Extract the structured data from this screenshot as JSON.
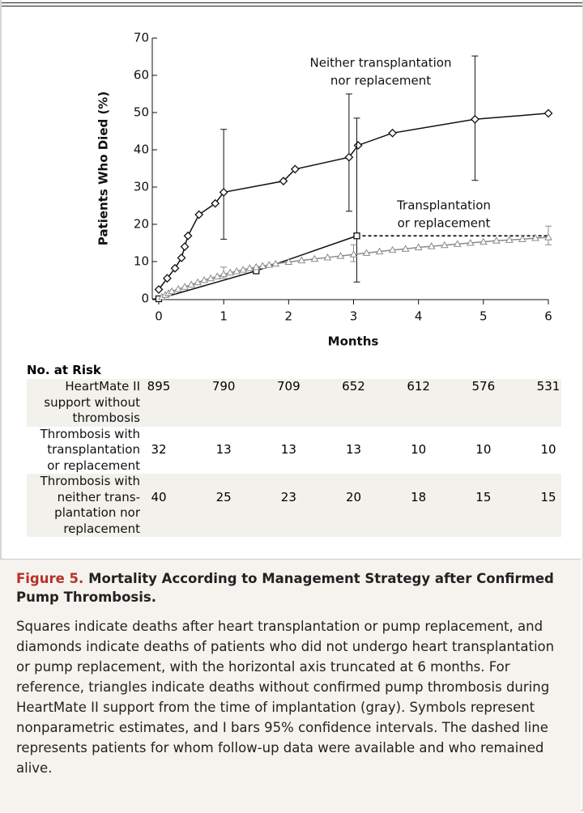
{
  "chart_data": {
    "type": "line",
    "y_label": "Patients Who Died (%)",
    "x_label": "Months",
    "xlim": [
      0,
      6
    ],
    "xticks": [
      0,
      1,
      2,
      3,
      4,
      5,
      6
    ],
    "ylim": [
      0,
      70
    ],
    "yticks": [
      0,
      10,
      20,
      30,
      40,
      50,
      60,
      70
    ],
    "grid": false,
    "series": [
      {
        "marker": "diamond",
        "color": "#111111",
        "x": [
          0,
          0.13,
          0.25,
          0.35,
          0.4,
          0.45,
          0.62,
          0.87,
          1,
          1.92,
          2.1,
          2.93,
          3.07,
          3.6,
          4.87,
          6
        ],
        "values": [
          2.5,
          5.5,
          8.2,
          11,
          14,
          16.9,
          22.6,
          25.6,
          28.6,
          31.6,
          34.8,
          38,
          41.2,
          44.5,
          48.2,
          49.8
        ],
        "ci_low": [
          null,
          null,
          null,
          null,
          null,
          null,
          null,
          null,
          16,
          null,
          null,
          23.5,
          null,
          null,
          31.8,
          null
        ],
        "ci_high": [
          null,
          null,
          null,
          null,
          null,
          null,
          null,
          null,
          45.5,
          null,
          null,
          55,
          null,
          null,
          65.2,
          null
        ]
      },
      {
        "marker": "square",
        "color": "#111111",
        "censored_dashed": true,
        "x": [
          0,
          1.5,
          3.05
        ],
        "values": [
          0,
          7.5,
          16.9
        ],
        "ci_low": [
          null,
          null,
          4.5
        ],
        "ci_high": [
          null,
          null,
          48.5
        ]
      },
      {
        "marker": "triangle",
        "color": "#8a8a8a",
        "x": [
          0.05,
          0.1,
          0.15,
          0.2,
          0.3,
          0.4,
          0.5,
          0.6,
          0.7,
          0.8,
          0.9,
          1.0,
          1.1,
          1.2,
          1.3,
          1.4,
          1.5,
          1.6,
          1.7,
          1.8,
          2.0,
          2.2,
          2.4,
          2.6,
          2.8,
          3.0,
          3.2,
          3.4,
          3.6,
          3.8,
          4.0,
          4.2,
          4.4,
          4.6,
          4.8,
          5.0,
          5.2,
          5.4,
          5.6,
          5.8,
          6.0
        ],
        "values": [
          0.5,
          1,
          1.5,
          2,
          2.6,
          3.2,
          3.8,
          4.4,
          5,
          5.5,
          6,
          6.6,
          7,
          7.4,
          7.8,
          8.2,
          8.5,
          8.8,
          9.1,
          9.4,
          9.9,
          10.3,
          10.7,
          11.1,
          11.5,
          11.9,
          12.3,
          12.7,
          13.1,
          13.4,
          13.8,
          14.1,
          14.4,
          14.7,
          15,
          15.3,
          15.6,
          15.8,
          16,
          16.3,
          16.5
        ],
        "ci_low": [
          null,
          null,
          null,
          null,
          null,
          null,
          null,
          null,
          null,
          null,
          null,
          5.5,
          null,
          null,
          null,
          null,
          null,
          null,
          null,
          null,
          null,
          null,
          null,
          null,
          null,
          10,
          null,
          null,
          null,
          null,
          null,
          null,
          null,
          null,
          null,
          null,
          null,
          null,
          null,
          null,
          14.5
        ],
        "ci_high": [
          null,
          null,
          null,
          null,
          null,
          null,
          null,
          null,
          null,
          null,
          null,
          8.5,
          null,
          null,
          null,
          null,
          null,
          null,
          null,
          null,
          null,
          null,
          null,
          null,
          null,
          14.5,
          null,
          null,
          null,
          null,
          null,
          null,
          null,
          null,
          null,
          null,
          null,
          null,
          null,
          null,
          19.5
        ]
      }
    ],
    "annotations": [
      {
        "text": [
          "Neither transplantation",
          "nor replacement"
        ]
      },
      {
        "text": [
          "Transplantation",
          "or replacement"
        ]
      }
    ]
  },
  "risk_table": {
    "header": "No. at Risk",
    "rows": [
      {
        "label": [
          "HeartMate II",
          "support without",
          "thrombosis"
        ],
        "values": [
          895,
          790,
          709,
          652,
          612,
          576,
          531
        ]
      },
      {
        "label": [
          "Thrombosis with",
          "transplantation",
          "or replacement"
        ],
        "values": [
          32,
          13,
          13,
          13,
          10,
          10,
          10
        ]
      },
      {
        "label": [
          "Thrombosis with",
          "neither trans-",
          "plantation nor",
          "replacement"
        ],
        "values": [
          40,
          25,
          23,
          20,
          18,
          15,
          15
        ]
      }
    ]
  },
  "caption": {
    "figure_label": "Figure 5.",
    "title": "Mortality According to Management Strategy after Confirmed Pump Thrombosis.",
    "text": "Squares indicate deaths after heart transplantation or pump replacement, and diamonds indicate deaths of patients who did not undergo heart transplantation or pump replacement, with the horizontal axis truncated at 6 months. For reference, triangles indicate deaths without confirmed pump thrombosis during HeartMate II support from the time of implantation (gray). Symbols represent nonparametric estimates, and I bars 95% confidence intervals. The dashed line represents patients for whom follow-up data were available and who remained alive."
  }
}
